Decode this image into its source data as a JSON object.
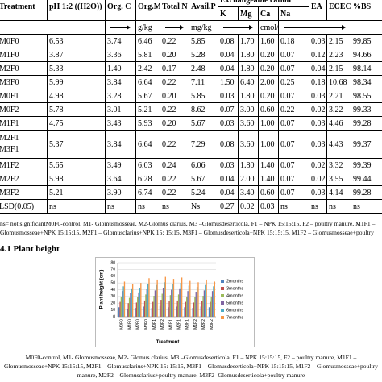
{
  "table": {
    "header": [
      "Treatment",
      "pH 1:2 ((H2O))",
      "Org. C",
      "Org.M",
      "Total N",
      "Avail.P",
      "Exchangeable cation",
      "EA",
      "ECEC",
      "%BS"
    ],
    "subheader": [
      "K",
      "Mg",
      "Ca",
      "Na"
    ],
    "units": [
      "g/kg",
      "mg/kg",
      "cmol/kg"
    ],
    "rows": [
      [
        "M0F0",
        "6.53",
        "3.74",
        "6.46",
        "0.22",
        "5.85",
        "0.08",
        "1.70",
        "1.60",
        "0.18",
        "0.03",
        "2.15",
        "99.85"
      ],
      [
        "M1F0",
        "3.87",
        "3.36",
        "5.81",
        "0.20",
        "5.28",
        "0.04",
        "1.80",
        "0.20",
        "0.07",
        "0.12",
        "2.23",
        "94.66"
      ],
      [
        "M2F0",
        "5.33",
        "1.40",
        "2.42",
        "0.17",
        "2.48",
        "0.04",
        "1.80",
        "0.20",
        "0.07",
        "0.04",
        "2.15",
        "98.14"
      ],
      [
        "M3F0",
        "5.99",
        "3.84",
        "6.64",
        "0.22",
        "7.11",
        "1.50",
        "6.40",
        "2.00",
        "0.25",
        "0.18",
        "10.68",
        "98.34"
      ],
      [
        "M0F1",
        "4.98",
        "3.28",
        "5.67",
        "0.20",
        "5.85",
        "0.03",
        "1.80",
        "0.20",
        "0.07",
        "0.03",
        "2.21",
        "98.55"
      ],
      [
        "M0F2",
        "5.78",
        "3.01",
        "5.21",
        "0.22",
        "8.62",
        "0.07",
        "3.00",
        "0.60",
        "0.22",
        "0.02",
        "3.22",
        "99.33"
      ],
      [
        "M1F1",
        "4.75",
        "3.43",
        "5.93",
        "0.20",
        "5.67",
        "0.03",
        "3.60",
        "1.00",
        "0.07",
        "0.03",
        "4.46",
        "99.28"
      ],
      [
        "M2F1 M3F1",
        "5.37",
        "3.84",
        "6.64",
        "0.22",
        "7.29",
        "0.08",
        "3.60",
        "1.00",
        "0.07",
        "0.03",
        "4.43",
        "99.37"
      ],
      [
        "M1F2",
        "5.65",
        "3.49",
        "6.03",
        "0.24",
        "6.06",
        "0.03",
        "1.80",
        "1.40",
        "0.07",
        "0.02",
        "3.32",
        "99.39"
      ],
      [
        "M2F2",
        "5.98",
        "3.64",
        "6.28",
        "0.22",
        "5.67",
        "0.04",
        "2.00",
        "1.40",
        "0.07",
        "0.02",
        "3.55",
        "99.44"
      ],
      [
        "M3F2",
        "5.21",
        "3.90",
        "6.74",
        "0.22",
        "5.24",
        "0.04",
        "3.40",
        "0.60",
        "0.07",
        "0.03",
        "4.14",
        "99.28"
      ],
      [
        "LSD(0.05)",
        "ns",
        "ns",
        "ns",
        "ns",
        "Ns",
        "0.27",
        "0.02",
        "0.03",
        "ns",
        "ns",
        "ns",
        "ns"
      ]
    ]
  },
  "table_note": "ns= not significantM0F0-control, M1- Glomusmosseae, M2-Glomus clarius, M3 –Glomusdeserticola, F1 – NPK 15:15:15, F2 – poultry manure, M1F1 – Glomusmosseae+NPK 15:15:15, M2F1 – Glomusclarius+NPK 15: 15:15, M3F1 – Glomusdeserticola+NPK 15:15:15, M1F2 – Glomusmosseae+poultry manure, M2F2 – Glomusclarius+poultry manure, M3F2- Glomusdeserticola+poultry ma",
  "section_heading": "4.1 Plant height",
  "chart_data": {
    "type": "bar",
    "x_label": "Treatment",
    "y_label": "Plant height (cm)",
    "categories": [
      "M0F0",
      "M1F0",
      "M2F0",
      "M3F0",
      "M0F1",
      "M0F2",
      "M1F1",
      "M2F1",
      "M3F1",
      "M1F2",
      "M2F2",
      "M3F2"
    ],
    "ylim": [
      0,
      80
    ],
    "yticks": [
      0,
      10,
      20,
      30,
      40,
      50,
      60,
      70,
      80
    ],
    "grid": true,
    "series": [
      {
        "name": "2months",
        "color": "#4f81bd",
        "values": [
          14,
          12,
          13,
          15,
          13,
          16,
          14,
          15,
          14,
          13,
          15,
          14
        ]
      },
      {
        "name": "3months",
        "color": "#c0504d",
        "values": [
          22,
          20,
          21,
          24,
          22,
          25,
          23,
          24,
          22,
          21,
          23,
          22
        ]
      },
      {
        "name": "4months",
        "color": "#9bbb59",
        "values": [
          30,
          28,
          29,
          33,
          31,
          34,
          32,
          33,
          30,
          29,
          31,
          30
        ]
      },
      {
        "name": "5months",
        "color": "#8064a2",
        "values": [
          38,
          35,
          36,
          41,
          39,
          43,
          40,
          42,
          38,
          37,
          39,
          38
        ]
      },
      {
        "name": "6months",
        "color": "#4bacc6",
        "values": [
          45,
          42,
          43,
          49,
          47,
          51,
          48,
          50,
          46,
          44,
          47,
          45
        ]
      },
      {
        "name": "7months",
        "color": "#f79646",
        "values": [
          52,
          48,
          50,
          57,
          55,
          59,
          56,
          58,
          53,
          51,
          55,
          52
        ]
      }
    ]
  },
  "caption": "M0F0-control, M1- Glomusmosseae, M2- Glomus clarius, M3 –Glomusdeserticola, F1 – NPK 15:15:15, F2 – poultry manure, M1F1 – Glomusmosseae+NPK 15:15:15, M2F1 – Glomusclarius+NPK 15: 15:15, M3F1 – Glomusdeserticola+NPK 15:15:15, M1F2 – Glomusmosseae+poultry manure, M2F2 – Glomusclarius+poultry manure, M3F2- Glomusdeserticola+poultry manure"
}
